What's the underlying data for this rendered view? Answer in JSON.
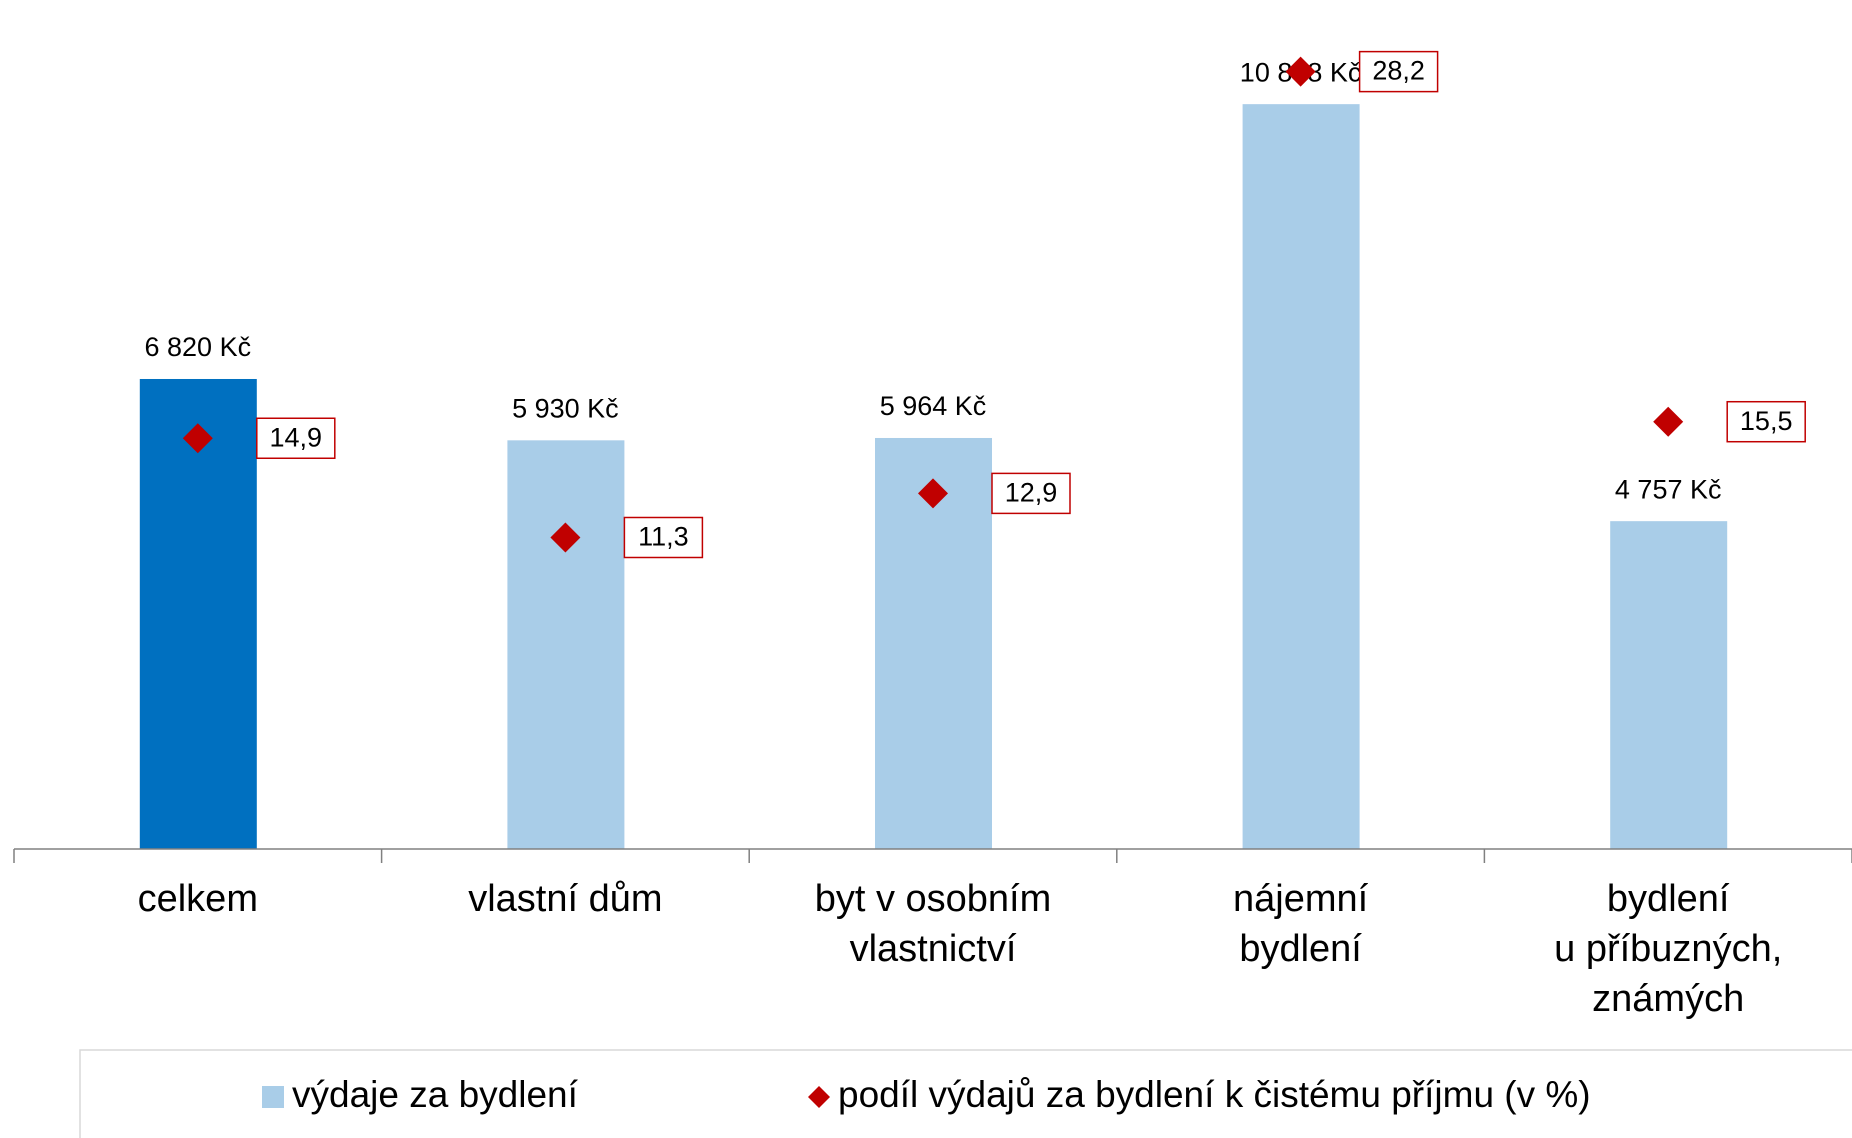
{
  "chart_data": {
    "type": "bar_scatter",
    "categories": [
      "celkem",
      "vlastní dům",
      "byt v osobním\nvlastnictví",
      "nájemní\nbydlení",
      "bydlení\nu příbuzných,\nznámých"
    ],
    "ylim": [
      0,
      12000
    ],
    "y2lim": [
      0,
      30
    ],
    "series": [
      {
        "name": "výdaje za bydlení",
        "type": "bar",
        "color": "#a9cde8",
        "colors": [
          "#0070c0",
          "#a9cde8",
          "#a9cde8",
          "#a9cde8",
          "#a9cde8"
        ],
        "values": [
          6820,
          5930,
          5964,
          10808,
          4757
        ],
        "value_labels": [
          "6 820 Kč",
          "5 930 Kč",
          "5 964 Kč",
          "10 808 Kč",
          "4 757 Kč"
        ]
      },
      {
        "name": "podíl výdajů za bydlení k čistému příjmu (v %)",
        "type": "scatter",
        "axis": "y2",
        "color": "#c00000",
        "values": [
          14.9,
          11.3,
          12.9,
          28.2,
          15.5
        ],
        "value_labels": [
          "14,9",
          "11,3",
          "12,9",
          "28,2",
          "15,5"
        ]
      }
    ],
    "legend": "bottom"
  }
}
